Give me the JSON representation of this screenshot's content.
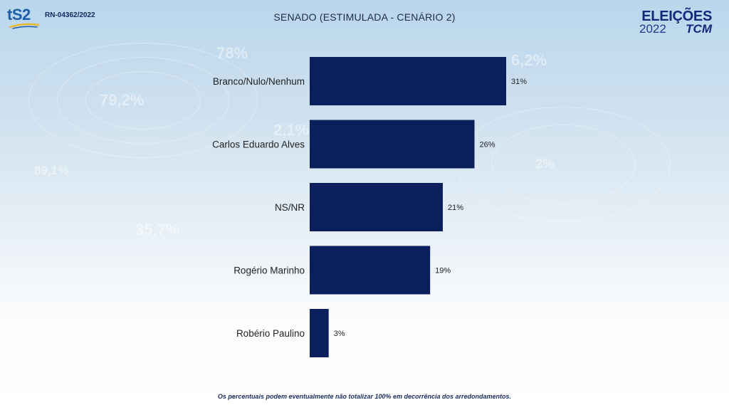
{
  "header": {
    "logo_left_text": "tS2",
    "registration": "RN-04362/2022",
    "logo_right_top": "ELEIÇÕES",
    "logo_right_year": "2022",
    "logo_right_brand": "TCM"
  },
  "footnote": "Os percentuais podem eventualmente não totalizar 100% em decorrência dos arredondamentos.",
  "colors": {
    "bar": "#0b1f5c",
    "label": "#222222"
  },
  "chart_data": {
    "type": "bar",
    "orientation": "horizontal",
    "title": "SENADO (ESTIMULADA - CENÁRIO 2)",
    "categories": [
      "Branco/Nulo/Nenhum",
      "Carlos Eduardo Alves",
      "NS/NR",
      "Rogério Marinho",
      "Robério Paulino"
    ],
    "values": [
      31,
      26,
      21,
      19,
      3
    ],
    "data_labels": [
      "31%",
      "26%",
      "21%",
      "19%",
      "3%"
    ],
    "unit": "%",
    "xlim": [
      0,
      35
    ],
    "grid": false,
    "legend": "none"
  }
}
